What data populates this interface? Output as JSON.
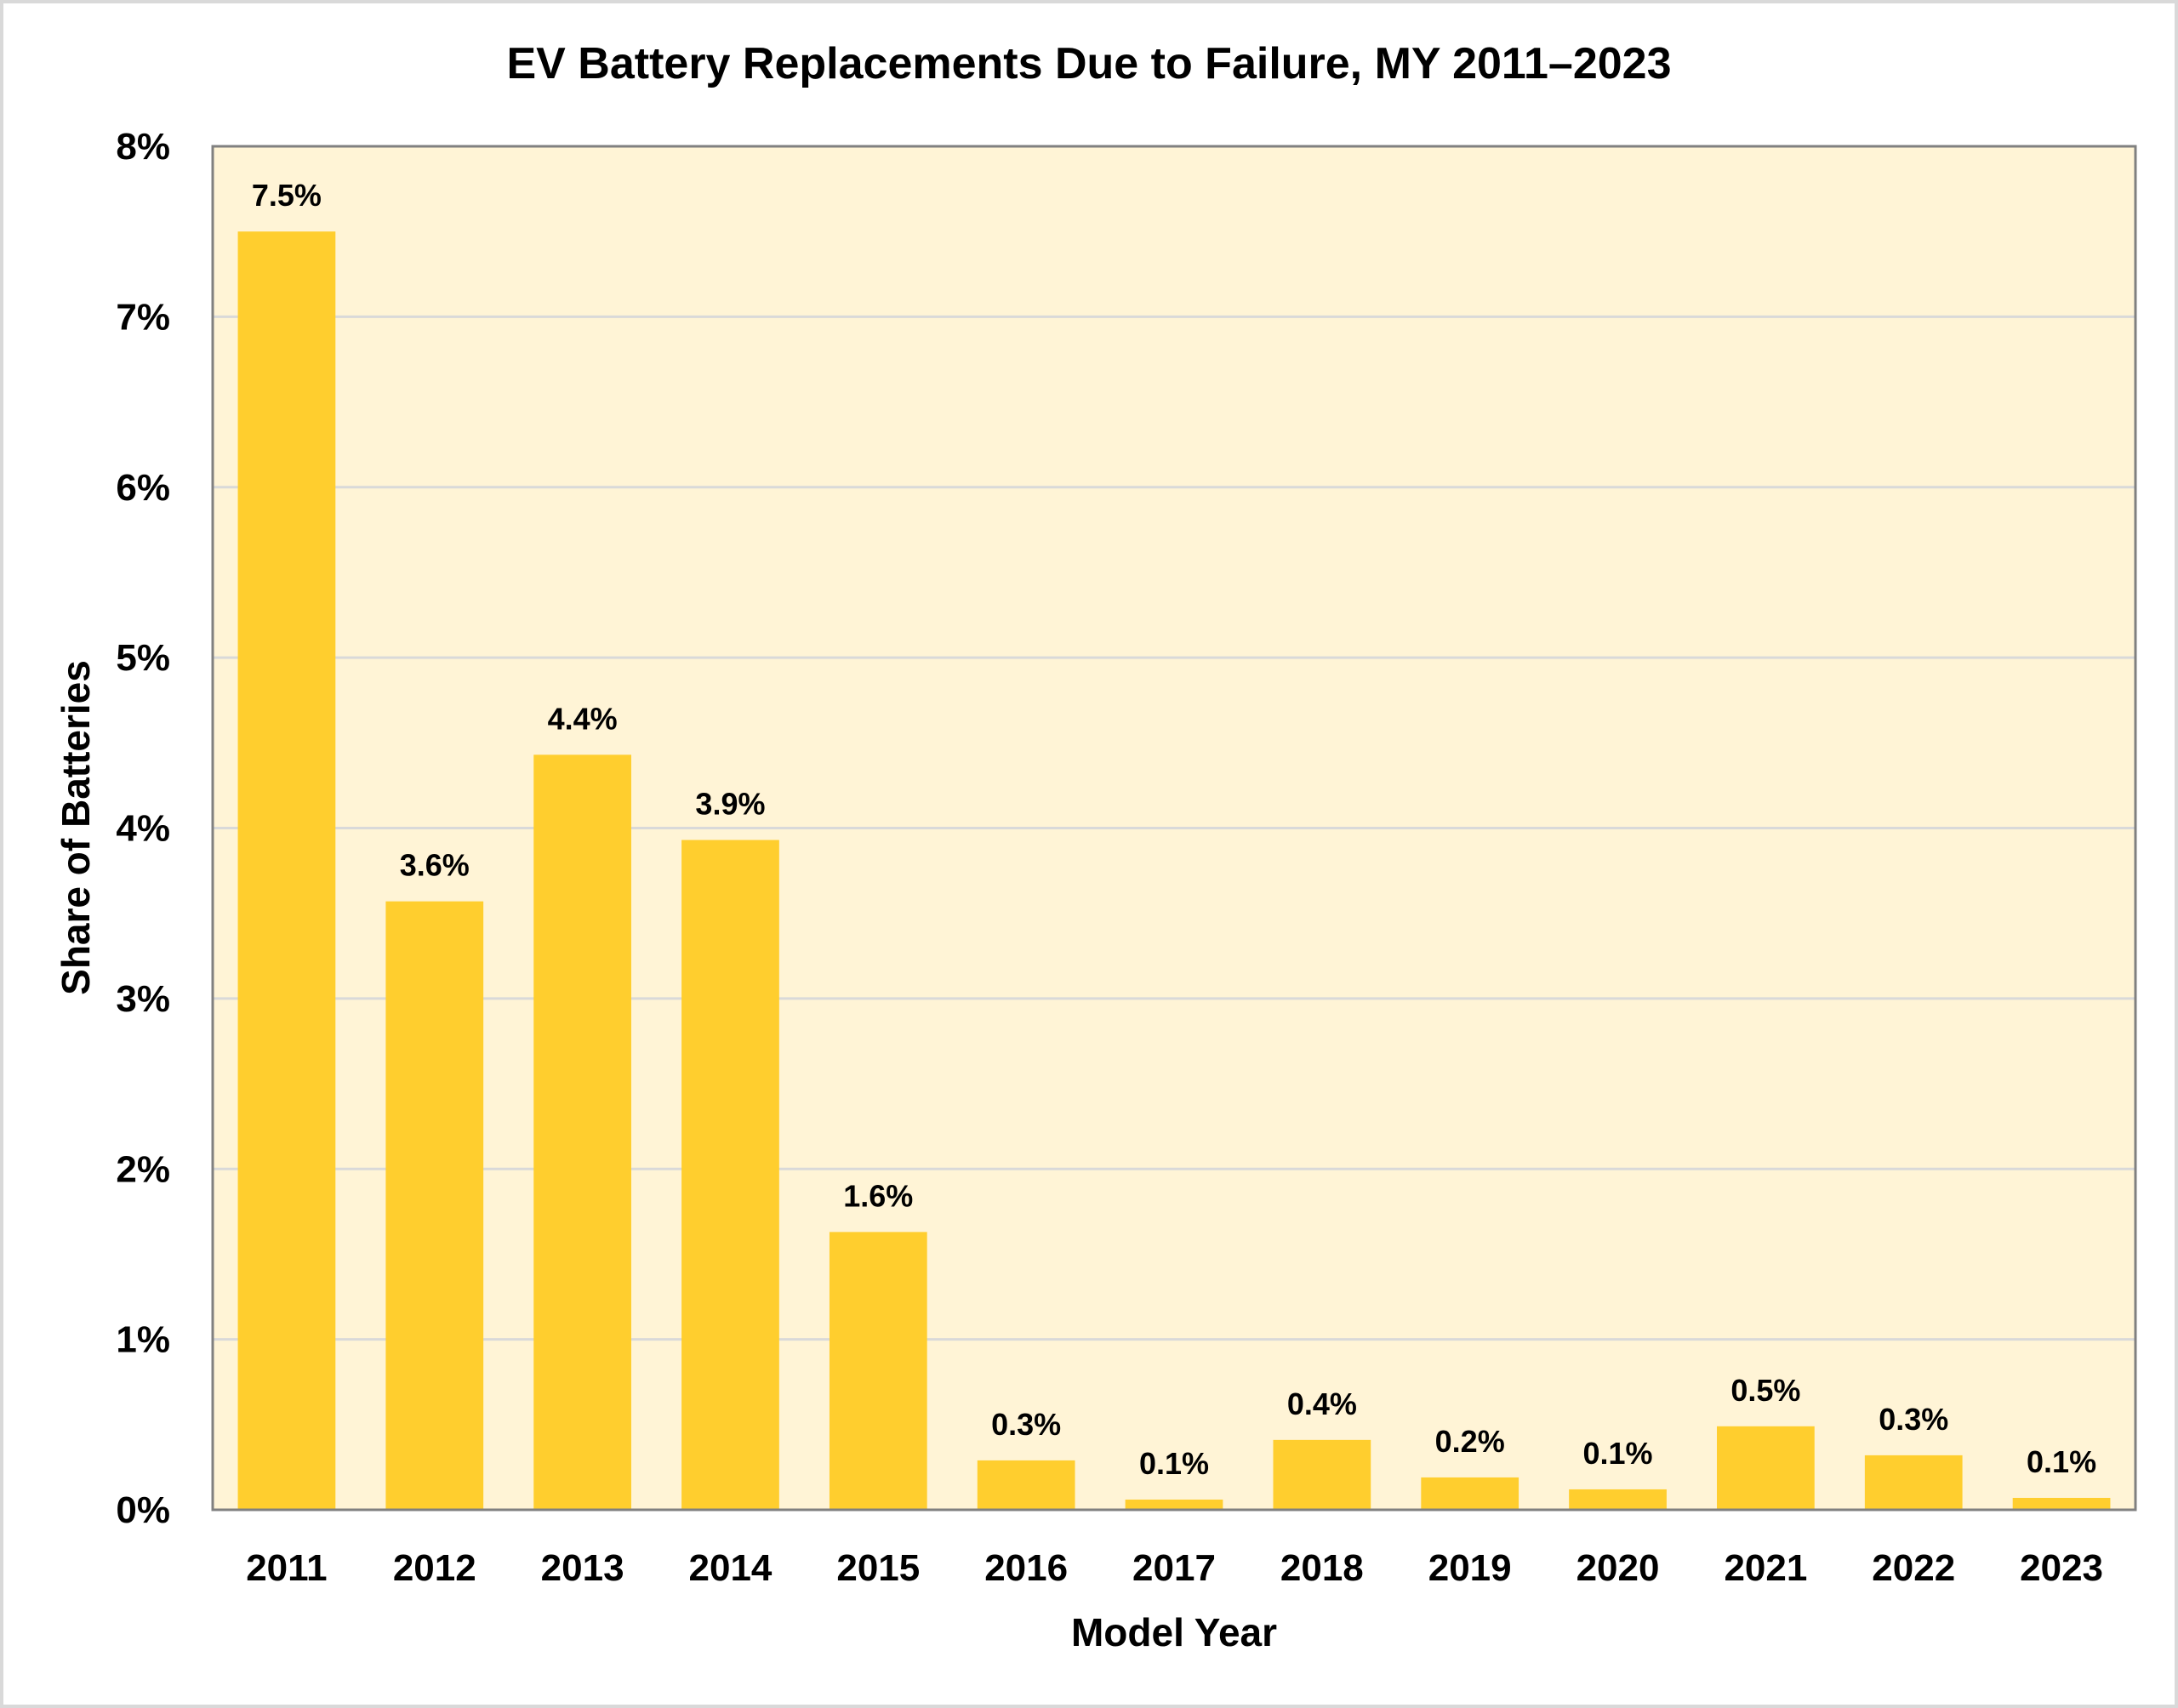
{
  "chart_data": {
    "type": "bar",
    "title": "EV Battery Replacements Due to Failure, MY 2011–2023",
    "xlabel": "Model Year",
    "ylabel": "Share of Batteries",
    "categories": [
      "2011",
      "2012",
      "2013",
      "2014",
      "2015",
      "2016",
      "2017",
      "2018",
      "2019",
      "2020",
      "2021",
      "2022",
      "2023"
    ],
    "values": [
      7.5,
      3.57,
      4.43,
      3.93,
      1.63,
      0.29,
      0.06,
      0.41,
      0.19,
      0.12,
      0.49,
      0.32,
      0.07
    ],
    "data_labels": [
      "7.5%",
      "3.6%",
      "4.4%",
      "3.9%",
      "1.6%",
      "0.3%",
      "0.1%",
      "0.4%",
      "0.2%",
      "0.1%",
      "0.5%",
      "0.3%",
      "0.1%"
    ],
    "yticks": [
      "0%",
      "1%",
      "2%",
      "3%",
      "4%",
      "5%",
      "6%",
      "7%",
      "8%"
    ],
    "ylim": [
      0,
      8
    ],
    "grid": true,
    "legend": "none",
    "colors": {
      "bar": "#FFCE2E",
      "plot_bg": "#FFF4D6",
      "grid": "#D9D9D9",
      "axis": "#808080",
      "frame": "#D9D9D9"
    }
  }
}
